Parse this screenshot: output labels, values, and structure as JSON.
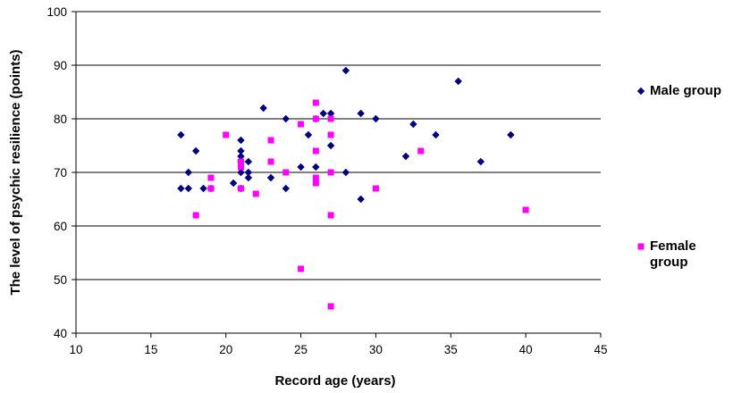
{
  "chart_data": {
    "type": "scatter",
    "title": "",
    "xlabel": "Record age (years)",
    "ylabel": "The level of psychic resilience (points)",
    "xlim": [
      10,
      45
    ],
    "ylim": [
      40,
      100
    ],
    "xticks": [
      "10",
      "15",
      "20",
      "25",
      "30",
      "35",
      "40",
      "45"
    ],
    "yticks": [
      "40",
      "50",
      "60",
      "70",
      "80",
      "90",
      "100"
    ],
    "grid": "horizontal",
    "legend_position": "right",
    "series": [
      {
        "name": "Male group",
        "legend_lines": [
          "Male group"
        ],
        "marker": "diamond",
        "color": "#000080",
        "points": [
          [
            17,
            77
          ],
          [
            17,
            67
          ],
          [
            17.5,
            70
          ],
          [
            17.5,
            67
          ],
          [
            18,
            74
          ],
          [
            18.5,
            67
          ],
          [
            19,
            67
          ],
          [
            20.5,
            68
          ],
          [
            21,
            76
          ],
          [
            21,
            74
          ],
          [
            21,
            73
          ],
          [
            21,
            72
          ],
          [
            21,
            70
          ],
          [
            21,
            67
          ],
          [
            21.5,
            72
          ],
          [
            21.5,
            70
          ],
          [
            21.5,
            69
          ],
          [
            22.5,
            82
          ],
          [
            23,
            69
          ],
          [
            24,
            80
          ],
          [
            24,
            67
          ],
          [
            25,
            71
          ],
          [
            25.5,
            77
          ],
          [
            26,
            80
          ],
          [
            26,
            71
          ],
          [
            26.5,
            81
          ],
          [
            27,
            81
          ],
          [
            27,
            75
          ],
          [
            28,
            89
          ],
          [
            28,
            70
          ],
          [
            29,
            81
          ],
          [
            29,
            65
          ],
          [
            30,
            80
          ],
          [
            32,
            73
          ],
          [
            32.5,
            79
          ],
          [
            34,
            77
          ],
          [
            35.5,
            87
          ],
          [
            37,
            72
          ],
          [
            39,
            77
          ]
        ]
      },
      {
        "name": "Female group",
        "legend_lines": [
          "Female",
          "group"
        ],
        "marker": "square",
        "color": "#ff00ff",
        "points": [
          [
            18,
            62
          ],
          [
            19,
            69
          ],
          [
            19,
            67
          ],
          [
            20,
            77
          ],
          [
            21,
            72
          ],
          [
            21,
            71
          ],
          [
            21,
            67
          ],
          [
            22,
            66
          ],
          [
            23,
            76
          ],
          [
            23,
            72
          ],
          [
            24,
            70
          ],
          [
            25,
            79
          ],
          [
            25,
            52
          ],
          [
            26,
            83
          ],
          [
            26,
            80
          ],
          [
            26,
            74
          ],
          [
            26,
            69
          ],
          [
            26,
            68
          ],
          [
            27,
            80
          ],
          [
            27,
            77
          ],
          [
            27,
            70
          ],
          [
            27,
            62
          ],
          [
            27,
            45
          ],
          [
            30,
            67
          ],
          [
            33,
            74
          ],
          [
            40,
            63
          ]
        ]
      }
    ]
  }
}
